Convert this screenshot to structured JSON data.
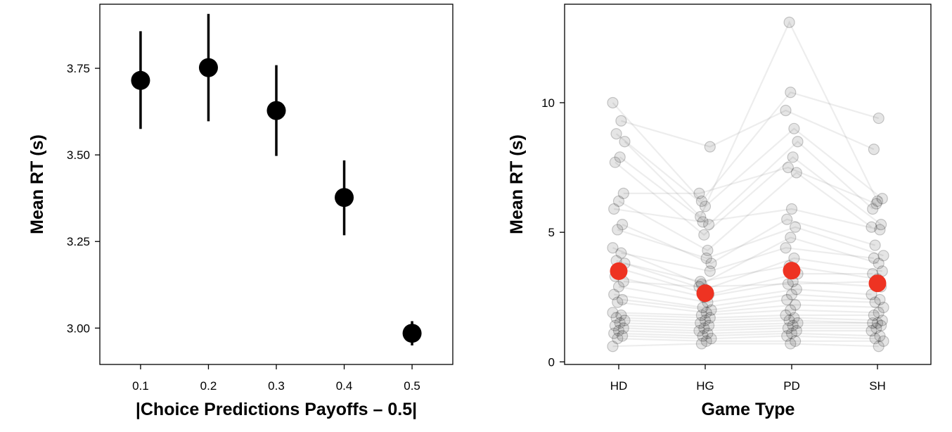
{
  "chart_data": [
    {
      "type": "scatter",
      "xlabel": "|Choice Predictions Payoffs – 0.5|",
      "ylabel": "Mean RT (s)",
      "xlim": [
        0.04,
        0.56
      ],
      "ylim": [
        2.895,
        3.935
      ],
      "xticks": [
        0.1,
        0.2,
        0.3,
        0.4,
        0.5
      ],
      "xtick_labels": [
        "0.1",
        "0.2",
        "0.3",
        "0.4",
        "0.5"
      ],
      "yticks": [
        3.0,
        3.25,
        3.5,
        3.75
      ],
      "ytick_labels": [
        "3.00",
        "3.25",
        "3.50",
        "3.75"
      ],
      "grid": false,
      "marker_color": "#000000",
      "points": [
        {
          "x": 0.1,
          "y": 3.715,
          "err_low": 3.575,
          "err_high": 3.857
        },
        {
          "x": 0.2,
          "y": 3.752,
          "err_low": 3.597,
          "err_high": 3.907
        },
        {
          "x": 0.3,
          "y": 3.628,
          "err_low": 3.497,
          "err_high": 3.759
        },
        {
          "x": 0.4,
          "y": 3.377,
          "err_low": 3.268,
          "err_high": 3.484
        },
        {
          "x": 0.5,
          "y": 2.985,
          "err_low": 2.95,
          "err_high": 3.02
        }
      ]
    },
    {
      "type": "scatter",
      "xlabel": "Game Type",
      "ylabel": "Mean RT (s)",
      "categories": [
        "HD",
        "HG",
        "PD",
        "SH"
      ],
      "ylim": [
        -0.1,
        13.8
      ],
      "yticks": [
        0,
        5,
        10
      ],
      "ytick_labels": [
        "0",
        "5",
        "10"
      ],
      "grid": false,
      "individual_color": "#000000",
      "mean_color": "#ee3322",
      "means": [
        3.5,
        2.65,
        3.52,
        3.03
      ],
      "subjects": [
        [
          10.0,
          6.2,
          10.4,
          9.4
        ],
        [
          9.3,
          8.3,
          9.7,
          8.2
        ],
        [
          8.8,
          6.0,
          9.0,
          6.3
        ],
        [
          8.5,
          5.6,
          13.1,
          6.2
        ],
        [
          7.9,
          5.3,
          8.5,
          5.9
        ],
        [
          7.7,
          4.9,
          7.9,
          5.3
        ],
        [
          6.5,
          6.5,
          7.5,
          6.1
        ],
        [
          6.2,
          4.3,
          7.3,
          5.2
        ],
        [
          5.9,
          5.4,
          5.9,
          5.1
        ],
        [
          5.3,
          3.8,
          5.5,
          4.5
        ],
        [
          5.1,
          4.0,
          5.2,
          4.1
        ],
        [
          4.4,
          3.0,
          4.8,
          3.8
        ],
        [
          4.2,
          3.5,
          4.4,
          4.0
        ],
        [
          3.9,
          2.8,
          4.0,
          3.5
        ],
        [
          3.8,
          3.1,
          3.7,
          3.2
        ],
        [
          3.6,
          2.6,
          3.4,
          3.4
        ],
        [
          3.3,
          2.5,
          3.1,
          2.9
        ],
        [
          3.1,
          2.9,
          3.0,
          3.1
        ],
        [
          2.9,
          2.3,
          2.8,
          2.6
        ],
        [
          2.6,
          2.1,
          2.6,
          2.4
        ],
        [
          2.4,
          2.0,
          2.4,
          2.3
        ],
        [
          2.3,
          1.9,
          2.2,
          2.1
        ],
        [
          1.9,
          1.8,
          2.0,
          1.9
        ],
        [
          1.8,
          1.7,
          1.8,
          1.8
        ],
        [
          1.7,
          1.6,
          1.7,
          1.6
        ],
        [
          1.6,
          1.5,
          1.6,
          1.5
        ],
        [
          1.5,
          1.4,
          1.5,
          1.5
        ],
        [
          1.4,
          1.3,
          1.4,
          1.4
        ],
        [
          1.3,
          1.2,
          1.3,
          1.3
        ],
        [
          1.2,
          1.1,
          1.2,
          1.2
        ],
        [
          1.1,
          1.0,
          1.1,
          1.0
        ],
        [
          1.0,
          0.9,
          1.0,
          0.9
        ],
        [
          0.9,
          0.8,
          0.8,
          0.8
        ],
        [
          0.6,
          0.7,
          0.7,
          0.6
        ]
      ]
    }
  ]
}
